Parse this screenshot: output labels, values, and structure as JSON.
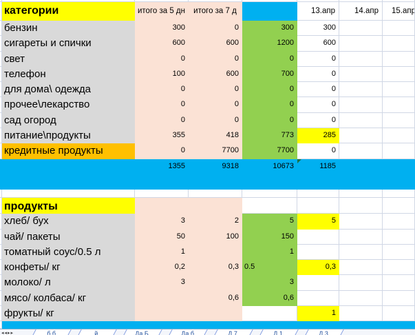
{
  "colors": {
    "highlight_yellow": "#FFFF00",
    "credit_orange": "#FFC000",
    "totals_pink": "#FBE2D5",
    "sum_green": "#92D050",
    "band_cyan": "#00B0F0",
    "label_gray": "#D9D9D9",
    "gridline": "#D0D7E5",
    "error_triangle_green": "#1E7145"
  },
  "sheet": {
    "header": {
      "a": "категории",
      "b": "итого за 5 дн",
      "c": "итого за 7 д",
      "dates": [
        "13.апр",
        "14.апр",
        "15.апр"
      ]
    },
    "categories": {
      "rows": [
        {
          "label": "бензин",
          "b": "300",
          "c": "0",
          "d": "300",
          "e": "300"
        },
        {
          "label": "сигареты и спички",
          "b": "600",
          "c": "600",
          "d": "1200",
          "e": "600"
        },
        {
          "label": "свет",
          "b": "0",
          "c": "0",
          "d": "0",
          "e": "0"
        },
        {
          "label": "телефон",
          "b": "100",
          "c": "600",
          "d": "700",
          "e": "0"
        },
        {
          "label": "для дома\\ одежда",
          "b": "0",
          "c": "0",
          "d": "0",
          "e": "0"
        },
        {
          "label": "прочее\\лекарство",
          "b": "0",
          "c": "0",
          "d": "0",
          "e": "0"
        },
        {
          "label": "сад огород",
          "b": "0",
          "c": "0",
          "d": "0",
          "e": "0"
        },
        {
          "label": "питание\\продукты",
          "b": "355",
          "c": "418",
          "d": "773",
          "e": "285"
        },
        {
          "label": "кредитные продукты",
          "b": "0",
          "c": "7700",
          "d": "7700",
          "e": "0"
        }
      ]
    },
    "totals": {
      "b": "1355",
      "c": "9318",
      "d": "10673",
      "e": "1185"
    },
    "products": {
      "title": "продукты",
      "rows": [
        {
          "label": "хлеб/ бух",
          "b": "3",
          "c": "2",
          "d": "5",
          "e": "5"
        },
        {
          "label": "чай/ пакеты",
          "b": "50",
          "c": "100",
          "d": "150",
          "e": ""
        },
        {
          "label": "томатный соус/0.5 л",
          "b": "1",
          "c": "",
          "d": "1",
          "e": ""
        },
        {
          "label": "конфеты/ кг",
          "b": "0,2",
          "c": "0,3",
          "d": "0.5",
          "e": "0,3"
        },
        {
          "label": "молоко/ л",
          "b": "3",
          "c": "",
          "d": "3",
          "e": ""
        },
        {
          "label": "мясо/ колбаса/ кг",
          "b": "",
          "c": "0,6",
          "d": "0,6",
          "e": ""
        },
        {
          "label": "фрукты/ кг",
          "b": "",
          "c": "",
          "d": "",
          "e": "1"
        }
      ]
    }
  },
  "tab_bar": {
    "nav": "◂◂▸▸",
    "tabs": [
      "б б",
      "й",
      "Да Б",
      "Да б",
      "Д 7",
      "Д 1",
      "Д 3"
    ]
  }
}
